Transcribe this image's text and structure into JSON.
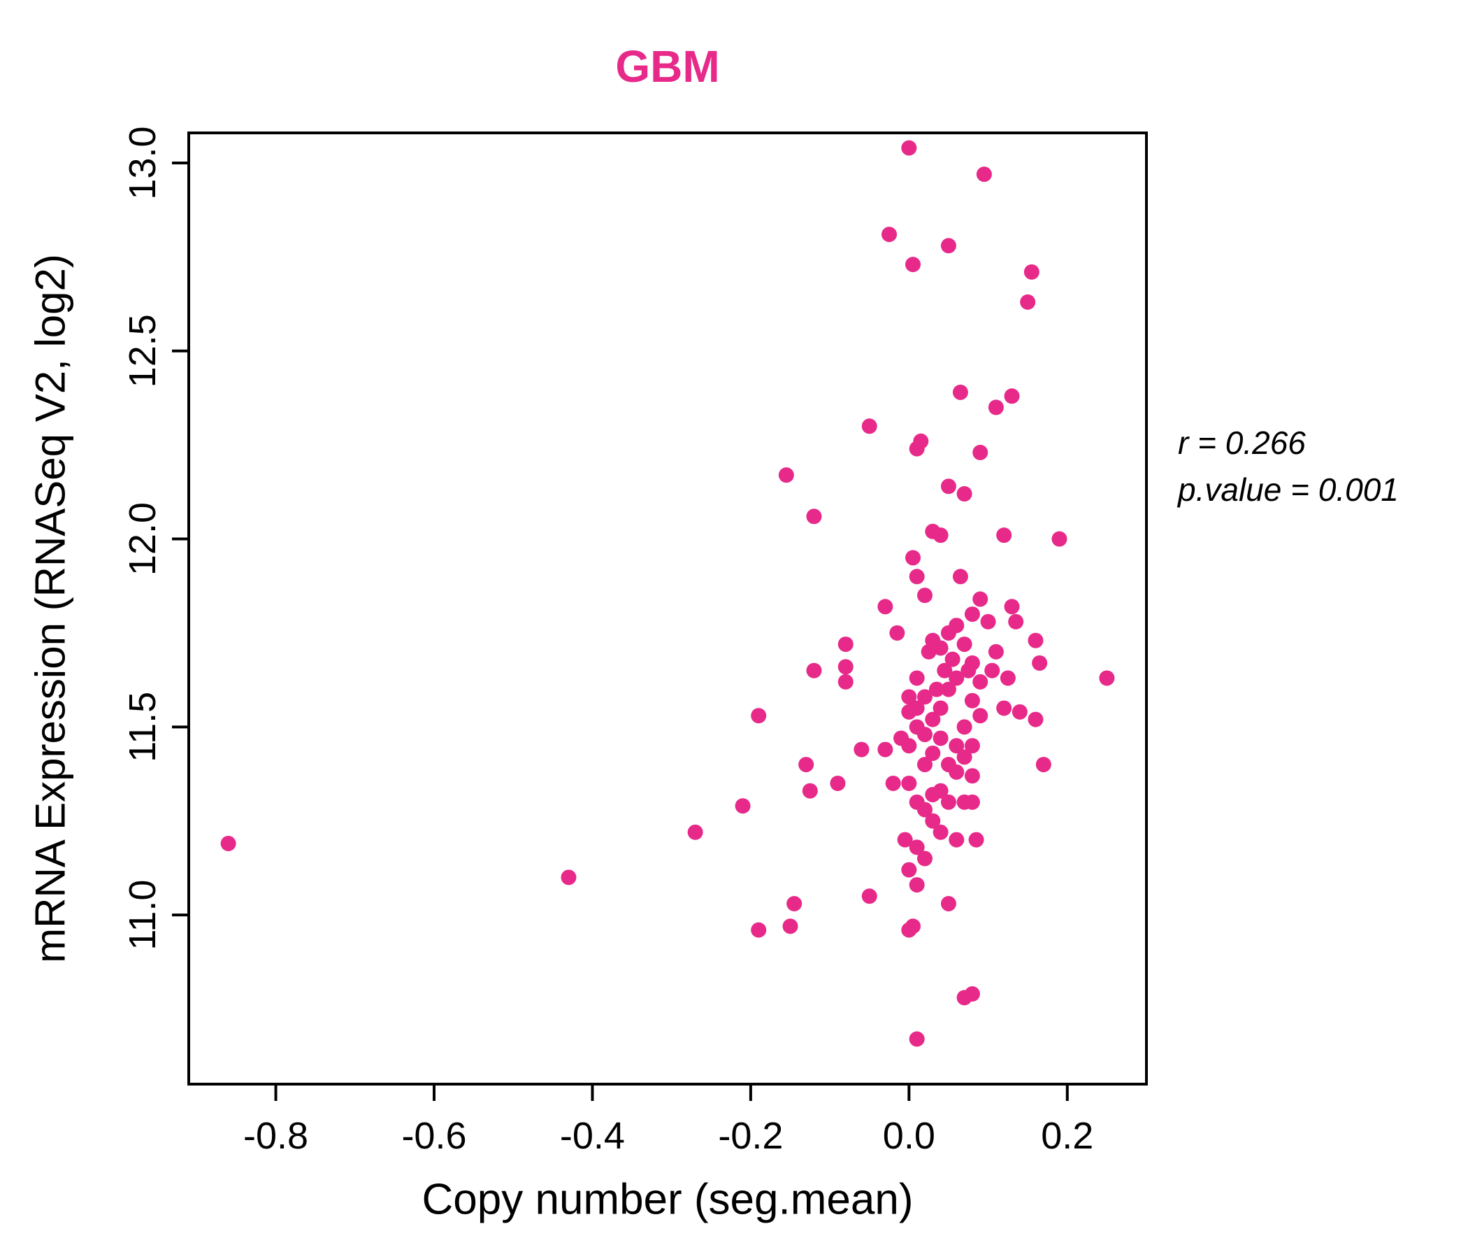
{
  "title": "GBM",
  "colors": {
    "point": "#E7298A",
    "title": "#E7298A",
    "axis": "#000000"
  },
  "annotation": {
    "r_text": "r = 0.266",
    "p_text": "p.value = 0.001"
  },
  "chart_data": {
    "type": "scatter",
    "title": "GBM",
    "xlabel": "Copy number (seg.mean)",
    "ylabel": "mRNA Expression (RNASeq V2, log2)",
    "xlim": [
      -0.91,
      0.3
    ],
    "ylim": [
      10.55,
      13.08
    ],
    "xticks": [
      -0.8,
      -0.6,
      -0.4,
      -0.2,
      0.0,
      0.2
    ],
    "yticks": [
      11.0,
      11.5,
      12.0,
      12.5,
      13.0
    ],
    "grid": false,
    "legend": "none",
    "annotations": [
      "r = 0.266",
      "p.value = 0.001"
    ],
    "series": [
      {
        "name": "GBM samples",
        "color": "#E7298A",
        "points": [
          [
            0.0,
            13.04
          ],
          [
            0.095,
            12.97
          ],
          [
            -0.025,
            12.81
          ],
          [
            0.05,
            12.78
          ],
          [
            0.005,
            12.73
          ],
          [
            0.155,
            12.71
          ],
          [
            0.15,
            12.63
          ],
          [
            0.065,
            12.39
          ],
          [
            0.13,
            12.38
          ],
          [
            0.11,
            12.35
          ],
          [
            -0.05,
            12.3
          ],
          [
            0.015,
            12.26
          ],
          [
            0.01,
            12.24
          ],
          [
            0.09,
            12.23
          ],
          [
            -0.155,
            12.17
          ],
          [
            0.05,
            12.14
          ],
          [
            0.07,
            12.12
          ],
          [
            -0.12,
            12.06
          ],
          [
            0.03,
            12.02
          ],
          [
            0.04,
            12.01
          ],
          [
            0.12,
            12.01
          ],
          [
            0.19,
            12.0
          ],
          [
            0.005,
            11.95
          ],
          [
            0.01,
            11.9
          ],
          [
            0.065,
            11.9
          ],
          [
            0.02,
            11.85
          ],
          [
            0.09,
            11.84
          ],
          [
            0.13,
            11.82
          ],
          [
            -0.03,
            11.82
          ],
          [
            0.08,
            11.8
          ],
          [
            0.1,
            11.78
          ],
          [
            0.135,
            11.78
          ],
          [
            0.06,
            11.77
          ],
          [
            0.05,
            11.75
          ],
          [
            -0.015,
            11.75
          ],
          [
            0.03,
            11.73
          ],
          [
            0.16,
            11.73
          ],
          [
            -0.08,
            11.72
          ],
          [
            0.07,
            11.72
          ],
          [
            0.04,
            11.71
          ],
          [
            0.11,
            11.7
          ],
          [
            0.025,
            11.7
          ],
          [
            0.055,
            11.68
          ],
          [
            0.08,
            11.67
          ],
          [
            0.165,
            11.67
          ],
          [
            -0.08,
            11.66
          ],
          [
            -0.12,
            11.65
          ],
          [
            0.045,
            11.65
          ],
          [
            0.075,
            11.65
          ],
          [
            0.105,
            11.65
          ],
          [
            0.01,
            11.63
          ],
          [
            0.06,
            11.63
          ],
          [
            0.125,
            11.63
          ],
          [
            0.25,
            11.63
          ],
          [
            -0.08,
            11.62
          ],
          [
            0.09,
            11.62
          ],
          [
            0.035,
            11.6
          ],
          [
            0.05,
            11.6
          ],
          [
            0.02,
            11.58
          ],
          [
            0.0,
            11.58
          ],
          [
            0.08,
            11.57
          ],
          [
            0.01,
            11.55
          ],
          [
            0.04,
            11.55
          ],
          [
            0.12,
            11.55
          ],
          [
            0.0,
            11.54
          ],
          [
            0.14,
            11.54
          ],
          [
            -0.19,
            11.53
          ],
          [
            0.09,
            11.53
          ],
          [
            0.03,
            11.52
          ],
          [
            0.16,
            11.52
          ],
          [
            0.07,
            11.5
          ],
          [
            0.01,
            11.5
          ],
          [
            0.02,
            11.48
          ],
          [
            0.04,
            11.47
          ],
          [
            -0.01,
            11.47
          ],
          [
            0.06,
            11.45
          ],
          [
            0.08,
            11.45
          ],
          [
            0.0,
            11.45
          ],
          [
            -0.03,
            11.44
          ],
          [
            -0.06,
            11.44
          ],
          [
            0.03,
            11.43
          ],
          [
            0.07,
            11.42
          ],
          [
            -0.13,
            11.4
          ],
          [
            0.05,
            11.4
          ],
          [
            0.02,
            11.4
          ],
          [
            0.17,
            11.4
          ],
          [
            0.06,
            11.38
          ],
          [
            0.08,
            11.37
          ],
          [
            -0.09,
            11.35
          ],
          [
            0.0,
            11.35
          ],
          [
            -0.02,
            11.35
          ],
          [
            0.04,
            11.33
          ],
          [
            -0.125,
            11.33
          ],
          [
            0.03,
            11.32
          ],
          [
            0.01,
            11.3
          ],
          [
            0.05,
            11.3
          ],
          [
            0.07,
            11.3
          ],
          [
            0.08,
            11.3
          ],
          [
            -0.21,
            11.29
          ],
          [
            0.02,
            11.28
          ],
          [
            0.03,
            11.25
          ],
          [
            -0.27,
            11.22
          ],
          [
            0.04,
            11.22
          ],
          [
            0.06,
            11.2
          ],
          [
            0.085,
            11.2
          ],
          [
            -0.005,
            11.2
          ],
          [
            -0.86,
            11.19
          ],
          [
            0.01,
            11.18
          ],
          [
            0.02,
            11.15
          ],
          [
            0.0,
            11.12
          ],
          [
            -0.43,
            11.1
          ],
          [
            0.01,
            11.08
          ],
          [
            -0.05,
            11.05
          ],
          [
            0.05,
            11.03
          ],
          [
            -0.145,
            11.03
          ],
          [
            0.005,
            10.97
          ],
          [
            -0.15,
            10.97
          ],
          [
            -0.19,
            10.96
          ],
          [
            0.0,
            10.96
          ],
          [
            0.08,
            10.79
          ],
          [
            0.07,
            10.78
          ],
          [
            0.01,
            10.67
          ]
        ]
      }
    ]
  }
}
